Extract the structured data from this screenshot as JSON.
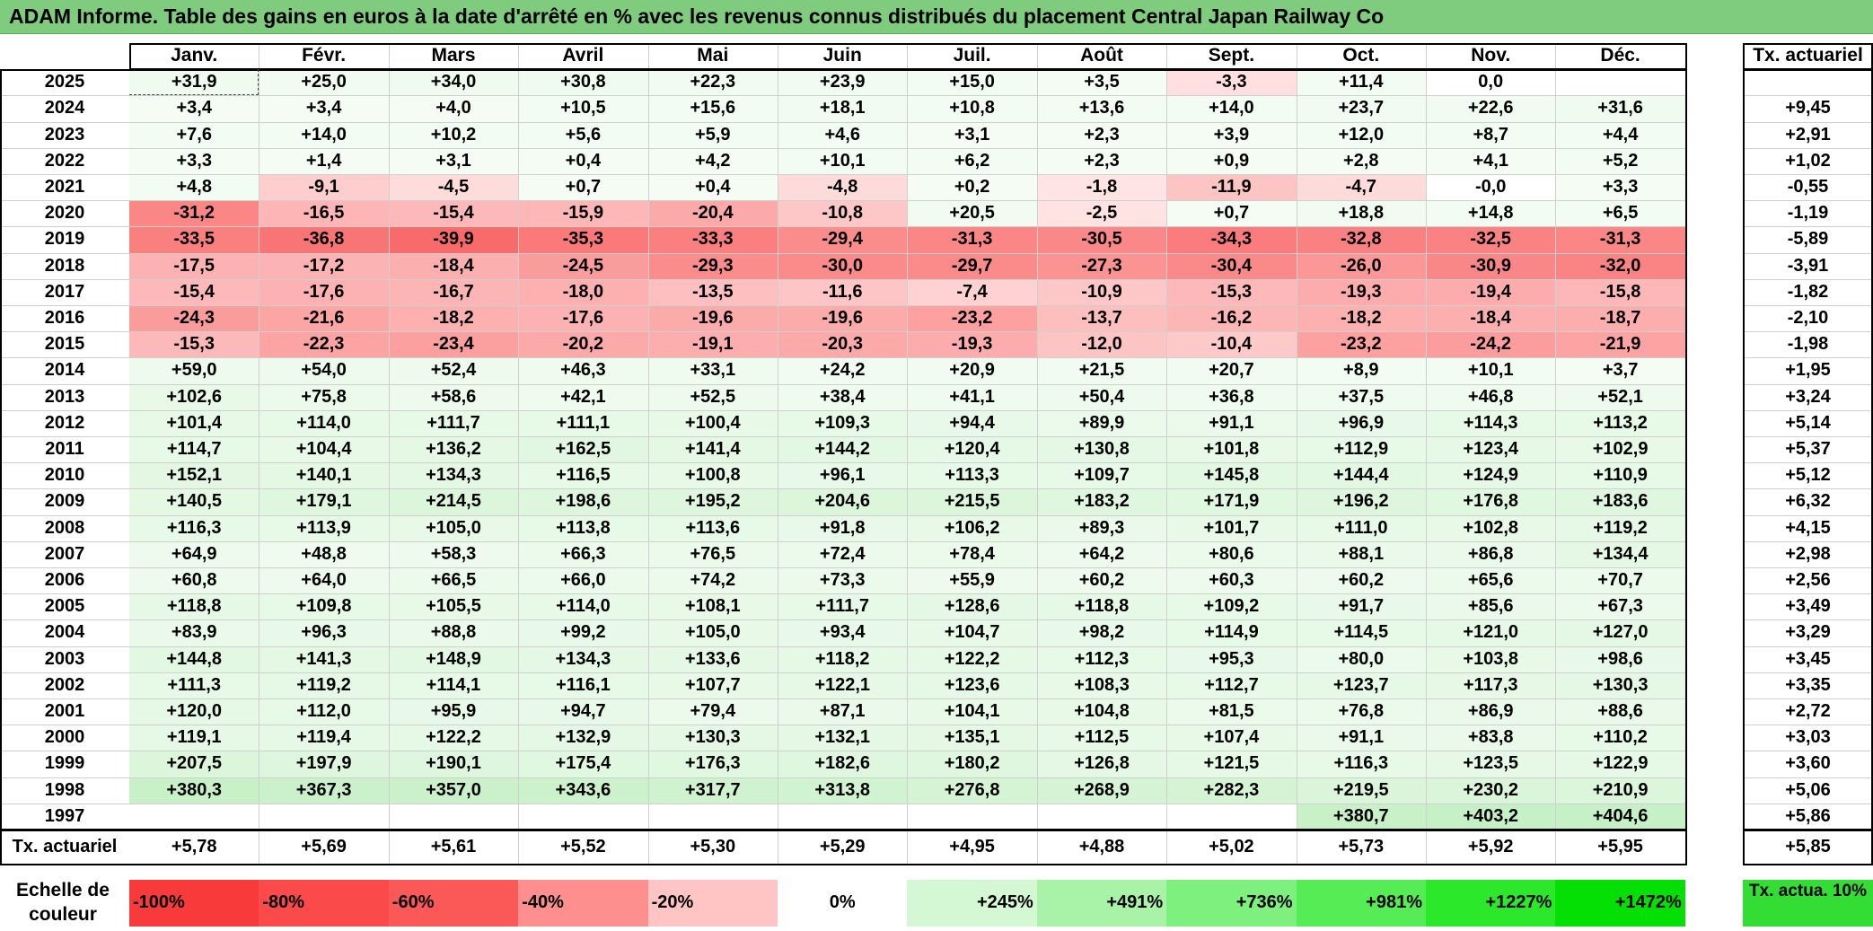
{
  "title": "ADAM Informe. Table des gains en euros à la date d'arrêté en % avec les revenus connus distribués du placement Central Japan Railway Co",
  "colors": {
    "title_bg": "#7fcc7f",
    "neg_light": "#ffeaea",
    "neg_strong": "#f96a6a",
    "pos_light": "#f4fcf4",
    "pos_strong": "#c6f0c6",
    "scale_neg": [
      "#f83a3a",
      "#fa4a4a",
      "#fb5858",
      "#fd8f8f",
      "#ffc4c4",
      "#ffffff"
    ],
    "scale_pos": [
      "#d3f8d3",
      "#a8f3a8",
      "#7ef07e",
      "#55ec55",
      "#2be82b",
      "#04e004"
    ],
    "rate_box": "#33dd33"
  },
  "chart_data": {
    "type": "table",
    "months": [
      "Janv.",
      "Févr.",
      "Mars",
      "Avril",
      "Mai",
      "Juin",
      "Juil.",
      "Août",
      "Sept.",
      "Oct.",
      "Nov.",
      "Déc."
    ],
    "rate_header": "Tx. actuariel",
    "rows": [
      {
        "year": "2025",
        "values": [
          "+31,9",
          "+25,0",
          "+34,0",
          "+30,8",
          "+22,3",
          "+23,9",
          "+15,0",
          "+3,5",
          "-3,3",
          "+11,4",
          "0,0",
          ""
        ],
        "rate": ""
      },
      {
        "year": "2024",
        "values": [
          "+3,4",
          "+3,4",
          "+4,0",
          "+10,5",
          "+15,6",
          "+18,1",
          "+10,8",
          "+13,6",
          "+14,0",
          "+23,7",
          "+22,6",
          "+31,6"
        ],
        "rate": "+9,45"
      },
      {
        "year": "2023",
        "values": [
          "+7,6",
          "+14,0",
          "+10,2",
          "+5,6",
          "+5,9",
          "+4,6",
          "+3,1",
          "+2,3",
          "+3,9",
          "+12,0",
          "+8,7",
          "+4,4"
        ],
        "rate": "+2,91"
      },
      {
        "year": "2022",
        "values": [
          "+3,3",
          "+1,4",
          "+3,1",
          "+0,4",
          "+4,2",
          "+10,1",
          "+6,2",
          "+2,3",
          "+0,9",
          "+2,8",
          "+4,1",
          "+5,2"
        ],
        "rate": "+1,02"
      },
      {
        "year": "2021",
        "values": [
          "+4,8",
          "-9,1",
          "-4,5",
          "+0,7",
          "+0,4",
          "-4,8",
          "+0,2",
          "-1,8",
          "-11,9",
          "-4,7",
          "-0,0",
          "+3,3"
        ],
        "rate": "-0,55"
      },
      {
        "year": "2020",
        "values": [
          "-31,2",
          "-16,5",
          "-15,4",
          "-15,9",
          "-20,4",
          "-10,8",
          "+20,5",
          "-2,5",
          "+0,7",
          "+18,8",
          "+14,8",
          "+6,5"
        ],
        "rate": "-1,19"
      },
      {
        "year": "2019",
        "values": [
          "-33,5",
          "-36,8",
          "-39,9",
          "-35,3",
          "-33,3",
          "-29,4",
          "-31,3",
          "-30,5",
          "-34,3",
          "-32,8",
          "-32,5",
          "-31,3"
        ],
        "rate": "-5,89"
      },
      {
        "year": "2018",
        "values": [
          "-17,5",
          "-17,2",
          "-18,4",
          "-24,5",
          "-29,3",
          "-30,0",
          "-29,7",
          "-27,3",
          "-30,4",
          "-26,0",
          "-30,9",
          "-32,0"
        ],
        "rate": "-3,91"
      },
      {
        "year": "2017",
        "values": [
          "-15,4",
          "-17,6",
          "-16,7",
          "-18,0",
          "-13,5",
          "-11,6",
          "-7,4",
          "-10,9",
          "-15,3",
          "-19,3",
          "-19,4",
          "-15,8"
        ],
        "rate": "-1,82"
      },
      {
        "year": "2016",
        "values": [
          "-24,3",
          "-21,6",
          "-18,2",
          "-17,6",
          "-19,6",
          "-19,6",
          "-23,2",
          "-13,7",
          "-16,2",
          "-18,2",
          "-18,4",
          "-18,7"
        ],
        "rate": "-2,10"
      },
      {
        "year": "2015",
        "values": [
          "-15,3",
          "-22,3",
          "-23,4",
          "-20,2",
          "-19,1",
          "-20,3",
          "-19,3",
          "-12,0",
          "-10,4",
          "-23,2",
          "-24,2",
          "-21,9"
        ],
        "rate": "-1,98"
      },
      {
        "year": "2014",
        "values": [
          "+59,0",
          "+54,0",
          "+52,4",
          "+46,3",
          "+33,1",
          "+24,2",
          "+20,9",
          "+21,5",
          "+20,7",
          "+8,9",
          "+10,1",
          "+3,7"
        ],
        "rate": "+1,95"
      },
      {
        "year": "2013",
        "values": [
          "+102,6",
          "+75,8",
          "+58,6",
          "+42,1",
          "+52,5",
          "+38,4",
          "+41,1",
          "+50,4",
          "+36,8",
          "+37,5",
          "+46,8",
          "+52,1"
        ],
        "rate": "+3,24"
      },
      {
        "year": "2012",
        "values": [
          "+101,4",
          "+114,0",
          "+111,7",
          "+111,1",
          "+100,4",
          "+109,3",
          "+94,4",
          "+89,9",
          "+91,1",
          "+96,9",
          "+114,3",
          "+113,2"
        ],
        "rate": "+5,14"
      },
      {
        "year": "2011",
        "values": [
          "+114,7",
          "+104,4",
          "+136,2",
          "+162,5",
          "+141,4",
          "+144,2",
          "+120,4",
          "+130,8",
          "+101,8",
          "+112,9",
          "+123,4",
          "+102,9"
        ],
        "rate": "+5,37"
      },
      {
        "year": "2010",
        "values": [
          "+152,1",
          "+140,1",
          "+134,3",
          "+116,5",
          "+100,8",
          "+96,1",
          "+113,3",
          "+109,7",
          "+145,8",
          "+144,4",
          "+124,9",
          "+110,9"
        ],
        "rate": "+5,12"
      },
      {
        "year": "2009",
        "values": [
          "+140,5",
          "+179,1",
          "+214,5",
          "+198,6",
          "+195,2",
          "+204,6",
          "+215,5",
          "+183,2",
          "+171,9",
          "+196,2",
          "+176,8",
          "+183,6"
        ],
        "rate": "+6,32"
      },
      {
        "year": "2008",
        "values": [
          "+116,3",
          "+113,9",
          "+105,0",
          "+113,8",
          "+113,6",
          "+91,8",
          "+106,2",
          "+89,3",
          "+101,7",
          "+111,0",
          "+102,8",
          "+119,2"
        ],
        "rate": "+4,15"
      },
      {
        "year": "2007",
        "values": [
          "+64,9",
          "+48,8",
          "+58,3",
          "+66,3",
          "+76,5",
          "+72,4",
          "+78,4",
          "+64,2",
          "+80,6",
          "+88,1",
          "+86,8",
          "+134,4"
        ],
        "rate": "+2,98"
      },
      {
        "year": "2006",
        "values": [
          "+60,8",
          "+64,0",
          "+66,5",
          "+66,0",
          "+74,2",
          "+73,3",
          "+55,9",
          "+60,2",
          "+60,3",
          "+60,2",
          "+65,6",
          "+70,7"
        ],
        "rate": "+2,56"
      },
      {
        "year": "2005",
        "values": [
          "+118,8",
          "+109,8",
          "+105,5",
          "+114,0",
          "+108,1",
          "+111,7",
          "+128,6",
          "+118,8",
          "+109,2",
          "+91,7",
          "+85,6",
          "+67,3"
        ],
        "rate": "+3,49"
      },
      {
        "year": "2004",
        "values": [
          "+83,9",
          "+96,3",
          "+88,8",
          "+99,2",
          "+105,0",
          "+93,4",
          "+104,7",
          "+98,2",
          "+114,9",
          "+114,5",
          "+121,0",
          "+127,0"
        ],
        "rate": "+3,29"
      },
      {
        "year": "2003",
        "values": [
          "+144,8",
          "+141,3",
          "+148,9",
          "+134,3",
          "+133,6",
          "+118,2",
          "+122,2",
          "+112,3",
          "+95,3",
          "+80,0",
          "+103,8",
          "+98,6"
        ],
        "rate": "+3,45"
      },
      {
        "year": "2002",
        "values": [
          "+111,3",
          "+119,2",
          "+114,1",
          "+116,1",
          "+107,7",
          "+122,1",
          "+123,6",
          "+108,3",
          "+112,7",
          "+123,7",
          "+117,3",
          "+130,3"
        ],
        "rate": "+3,35"
      },
      {
        "year": "2001",
        "values": [
          "+120,0",
          "+112,0",
          "+95,9",
          "+94,7",
          "+79,4",
          "+87,1",
          "+104,1",
          "+104,8",
          "+81,5",
          "+76,8",
          "+86,9",
          "+88,6"
        ],
        "rate": "+2,72"
      },
      {
        "year": "2000",
        "values": [
          "+119,1",
          "+119,4",
          "+122,2",
          "+132,9",
          "+130,3",
          "+132,1",
          "+135,1",
          "+112,5",
          "+107,4",
          "+91,1",
          "+83,8",
          "+110,2"
        ],
        "rate": "+3,03"
      },
      {
        "year": "1999",
        "values": [
          "+207,5",
          "+197,9",
          "+190,1",
          "+175,4",
          "+176,3",
          "+182,6",
          "+180,2",
          "+126,8",
          "+121,5",
          "+116,3",
          "+123,5",
          "+122,9"
        ],
        "rate": "+3,60"
      },
      {
        "year": "1998",
        "values": [
          "+380,3",
          "+367,3",
          "+357,0",
          "+343,6",
          "+317,7",
          "+313,8",
          "+276,8",
          "+268,9",
          "+282,3",
          "+219,5",
          "+230,2",
          "+210,9"
        ],
        "rate": "+5,06"
      },
      {
        "year": "1997",
        "values": [
          "",
          "",
          "",
          "",
          "",
          "",
          "",
          "",
          "",
          "+380,7",
          "+403,2",
          "+404,6"
        ],
        "rate": "+5,86"
      }
    ],
    "footer": {
      "label": "Tx. actuariel",
      "values": [
        "+5,78",
        "+5,69",
        "+5,61",
        "+5,52",
        "+5,30",
        "+5,29",
        "+4,95",
        "+4,88",
        "+5,02",
        "+5,73",
        "+5,92",
        "+5,95"
      ],
      "rate": "+5,85"
    },
    "scale": {
      "label": "Echelle de couleur",
      "items": [
        "-100%",
        "-80%",
        "-60%",
        "-40%",
        "-20%",
        "0%",
        "+245%",
        "+491%",
        "+736%",
        "+981%",
        "+1227%",
        "+1472%"
      ],
      "rate_label": "Tx. actua. 10%"
    }
  }
}
